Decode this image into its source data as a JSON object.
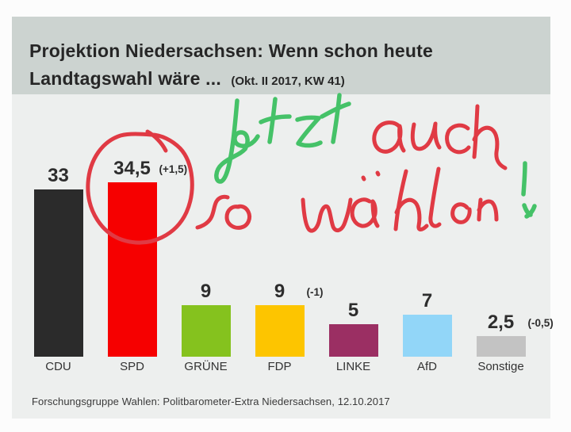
{
  "header": {
    "title_line1": "Projektion Niedersachsen: Wenn schon heute",
    "title_line2": "Landtagswahl wäre ...",
    "title_note": "(Okt. II 2017, KW 41)"
  },
  "chart_data": {
    "type": "bar",
    "title": "Projektion Niedersachsen: Wenn schon heute Landtagswahl wäre ... (Okt. II 2017, KW 41)",
    "categories": [
      "CDU",
      "SPD",
      "GRÜNE",
      "FDP",
      "LINKE",
      "AfD",
      "Sonstige"
    ],
    "values": [
      33,
      34.5,
      9,
      9,
      5,
      7,
      2.5
    ],
    "value_labels": [
      "33",
      "34,5",
      "9",
      "9",
      "5",
      "7",
      "2,5"
    ],
    "change_labels": [
      "",
      "(+1,5)",
      "",
      "(-1)",
      "",
      "",
      "(-0,5)"
    ],
    "bar_colors": [
      "#2b2b2b",
      "#f60000",
      "#85c21e",
      "#fdc500",
      "#9b2f63",
      "#92d6f8",
      "#c3c3c3"
    ],
    "ylim": [
      0,
      40
    ],
    "grid": false,
    "legend": "none",
    "source": "Forschungsgruppe Wahlen: Politbarometer-Extra Niedersachsen, 12.10.2017"
  },
  "footer": {
    "source": "Forschungsgruppe Wahlen: Politbarometer-Extra Niedersachsen, 12.10.2017"
  },
  "annotations": {
    "handwriting_text": "Jetzt auch so wählen!",
    "green": "#45c268",
    "red": "#e03a44",
    "circled_bar": "SPD"
  }
}
